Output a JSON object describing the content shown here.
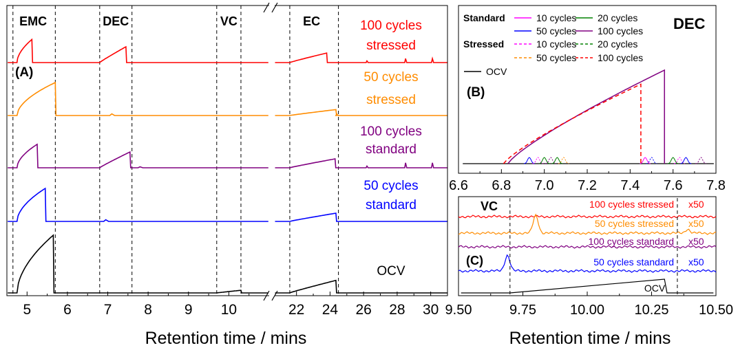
{
  "figure": {
    "xlabel_left": "Retention time / mins",
    "xlabel_right": "Retention time / mins"
  },
  "chart_data": [
    {
      "id": "A",
      "type": "line",
      "panel_label": "(A)",
      "xlabel": "Retention time / mins",
      "x_segments": [
        {
          "range": [
            4.5,
            11.0
          ]
        },
        {
          "range": [
            20.7,
            31.0
          ]
        }
      ],
      "x_ticks": [
        5,
        6,
        7,
        8,
        9,
        10,
        22,
        24,
        26,
        28,
        30
      ],
      "region_labels": [
        {
          "text": "EMC",
          "x": 5.15,
          "bounds": [
            4.65,
            5.7
          ]
        },
        {
          "text": "DEC",
          "x": 7.2,
          "bounds": [
            6.8,
            7.6
          ]
        },
        {
          "text": "VC",
          "x": 10.0,
          "bounds": [
            9.7,
            10.3
          ]
        },
        {
          "text": "EC",
          "x": 22.9,
          "bounds": [
            21.6,
            24.5
          ]
        }
      ],
      "series": [
        {
          "name": "100 cycles stressed",
          "label_lines": [
            "100 cycles",
            "stressed"
          ],
          "color": "#ff0000",
          "peaks": [
            {
              "x0": 4.75,
              "x1": 5.12,
              "h": 0.7,
              "shape": "conc"
            },
            {
              "x0": 6.8,
              "x1": 7.45,
              "h": 0.48,
              "shape": "lin"
            },
            {
              "x0": 21.6,
              "x1": 23.8,
              "h": 0.29,
              "shape": "lin"
            }
          ],
          "spikes": [
            {
              "x": 26.2,
              "h": 0.05
            },
            {
              "x": 28.5,
              "h": 0.12
            },
            {
              "x": 30.1,
              "h": 0.12
            }
          ]
        },
        {
          "name": "50 cycles stressed",
          "label_lines": [
            "50 cycles",
            "stressed"
          ],
          "color": "#ff8c00",
          "peaks": [
            {
              "x0": 4.75,
              "x1": 5.7,
              "h": 1.0,
              "shape": "conc"
            },
            {
              "x0": 21.6,
              "x1": 24.35,
              "h": 0.18,
              "shape": "lin"
            }
          ],
          "spikes": [
            {
              "x": 7.1,
              "h": 0.05
            },
            {
              "x": 24.4,
              "h": 0.05
            }
          ]
        },
        {
          "name": "100 cycles standard",
          "label_lines": [
            "100 cycles",
            "standard"
          ],
          "color": "#800080",
          "peaks": [
            {
              "x0": 4.75,
              "x1": 5.25,
              "h": 0.71,
              "shape": "conc"
            },
            {
              "x0": 6.8,
              "x1": 7.55,
              "h": 0.48,
              "shape": "lin"
            },
            {
              "x0": 21.6,
              "x1": 24.3,
              "h": 0.27,
              "shape": "lin"
            }
          ],
          "spikes": [
            {
              "x": 7.8,
              "h": 0.03
            },
            {
              "x": 26.2,
              "h": 0.05
            },
            {
              "x": 28.5,
              "h": 0.15
            },
            {
              "x": 30.1,
              "h": 0.15
            }
          ]
        },
        {
          "name": "50 cycles standard",
          "label_lines": [
            "50 cycles",
            "standard"
          ],
          "color": "#0000ff",
          "peaks": [
            {
              "x0": 4.75,
              "x1": 5.45,
              "h": 1.0,
              "shape": "conc"
            },
            {
              "x0": 21.6,
              "x1": 24.35,
              "h": 0.25,
              "shape": "lin"
            }
          ],
          "spikes": [
            {
              "x": 6.95,
              "h": 0.05
            }
          ]
        },
        {
          "name": "OCV",
          "label_lines": [
            "OCV"
          ],
          "color": "#000000",
          "peaks": [
            {
              "x0": 4.75,
              "x1": 5.65,
              "h": 1.75,
              "shape": "conc"
            },
            {
              "x0": 9.7,
              "x1": 10.3,
              "h": 0.08,
              "shape": "lin"
            },
            {
              "x0": 21.6,
              "x1": 24.35,
              "h": 0.38,
              "shape": "lin"
            }
          ],
          "spikes": []
        }
      ]
    },
    {
      "id": "B",
      "type": "line",
      "panel_label": "(B)",
      "title": "DEC",
      "xlabel": "Retention time / mins",
      "xlim": [
        6.6,
        7.8
      ],
      "x_ticks": [
        6.6,
        6.8,
        7.0,
        7.2,
        7.4,
        7.6,
        7.8
      ],
      "legend": {
        "group_standard": "Standard",
        "group_stressed": "Stressed",
        "entries": [
          {
            "label": "10 cycles",
            "color": "#ff00ff",
            "dash": false
          },
          {
            "label": "20 cycles",
            "color": "#008000",
            "dash": false
          },
          {
            "label": "50 cycles",
            "color": "#0000ff",
            "dash": false
          },
          {
            "label": "100 cycles",
            "color": "#800080",
            "dash": false
          },
          {
            "label": "10 cycles",
            "color": "#ff00ff",
            "dash": true
          },
          {
            "label": "20 cycles",
            "color": "#008000",
            "dash": true
          },
          {
            "label": "50 cycles",
            "color": "#ff8c00",
            "dash": true
          },
          {
            "label": "100 cycles",
            "color": "#ff0000",
            "dash": true
          },
          {
            "label": "OCV",
            "color": "#000000",
            "dash": false
          }
        ]
      },
      "series": [
        {
          "name": "100 cycles standard",
          "color": "#800080",
          "dash": false,
          "rise": [
            6.83,
            7.56
          ],
          "peak": 1.0
        },
        {
          "name": "100 cycles stressed",
          "color": "#ff0000",
          "dash": true,
          "rise": [
            6.81,
            7.45
          ],
          "peak": 0.85
        }
      ],
      "small_peaks": [
        {
          "x": 6.93,
          "color": "#0000ff"
        },
        {
          "x": 6.97,
          "color": "#ff00ff"
        },
        {
          "x": 7.0,
          "color": "#008000"
        },
        {
          "x": 7.03,
          "color": "#800080"
        },
        {
          "x": 7.06,
          "color": "#008000"
        },
        {
          "x": 7.09,
          "color": "#ff8c00"
        },
        {
          "x": 7.47,
          "color": "#ff00ff"
        },
        {
          "x": 7.5,
          "color": "#0000ff"
        },
        {
          "x": 7.6,
          "color": "#008000"
        },
        {
          "x": 7.63,
          "color": "#ff00ff"
        },
        {
          "x": 7.66,
          "color": "#0000ff"
        },
        {
          "x": 7.73,
          "color": "#800080"
        }
      ]
    },
    {
      "id": "C",
      "type": "line",
      "panel_label": "(C)",
      "title": "VC",
      "xlabel": "Retention time / mins",
      "xlim": [
        9.5,
        10.5
      ],
      "x_ticks": [
        9.5,
        9.75,
        10.0,
        10.25,
        10.5
      ],
      "x_tick_labels": [
        "9.50",
        "9.75",
        "10.00",
        "10.25",
        "10.50"
      ],
      "markers": [
        9.7,
        10.35
      ],
      "series": [
        {
          "name": "100 cycles stressed",
          "color": "#ff0000",
          "peak_x": null,
          "scale": "x50"
        },
        {
          "name": "50 cycles stressed",
          "color": "#ff8c00",
          "peak_x": 9.8,
          "scale": "x50"
        },
        {
          "name": "100 cycles standard",
          "color": "#800080",
          "peak_x": null,
          "scale": "x50"
        },
        {
          "name": "50 cycles standard",
          "color": "#0000ff",
          "peak_x": 9.69,
          "scale": "x50"
        },
        {
          "name": "OCV",
          "color": "#000000",
          "peak_x": null,
          "scale": ""
        }
      ]
    }
  ]
}
